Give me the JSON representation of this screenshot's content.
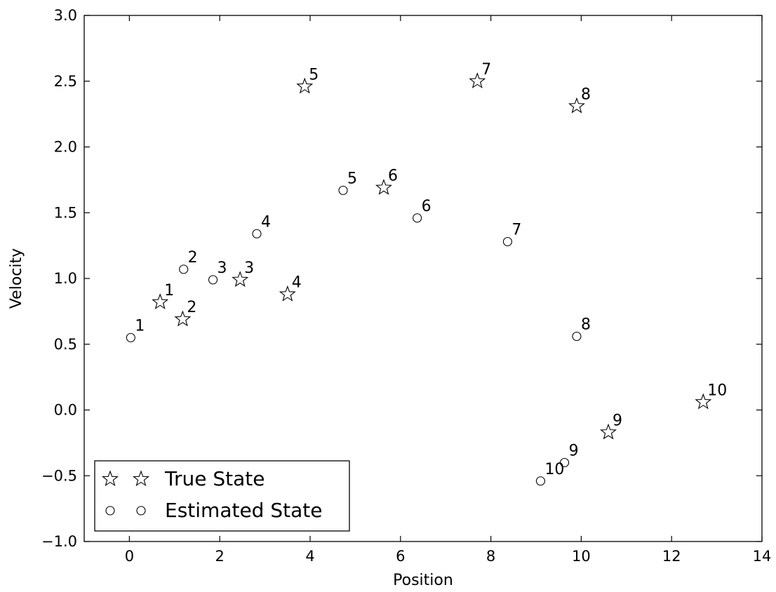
{
  "chart_data": {
    "type": "scatter",
    "xlabel": "Position",
    "ylabel": "Velocity",
    "xlim": [
      -1,
      14
    ],
    "ylim": [
      -1.0,
      3.0
    ],
    "x_ticks": [
      "0",
      "2",
      "4",
      "6",
      "8",
      "10",
      "12",
      "14"
    ],
    "y_ticks": [
      "−1.0",
      "−0.5",
      "0.0",
      "0.5",
      "1.0",
      "1.5",
      "2.0",
      "2.5",
      "3.0"
    ],
    "grid": false,
    "legend_position": "lower-left",
    "series": [
      {
        "name": "True State",
        "marker": "star",
        "color": "#ffffff",
        "edge_color": "#000000",
        "points": [
          {
            "x": 0.68,
            "y": 0.82,
            "label": "1"
          },
          {
            "x": 1.18,
            "y": 0.69,
            "label": "2"
          },
          {
            "x": 2.45,
            "y": 0.99,
            "label": "3"
          },
          {
            "x": 3.5,
            "y": 0.88,
            "label": "4"
          },
          {
            "x": 3.88,
            "y": 2.46,
            "label": "5"
          },
          {
            "x": 5.63,
            "y": 1.69,
            "label": "6"
          },
          {
            "x": 7.7,
            "y": 2.5,
            "label": "7"
          },
          {
            "x": 9.9,
            "y": 2.31,
            "label": "8"
          },
          {
            "x": 10.6,
            "y": -0.17,
            "label": "9"
          },
          {
            "x": 12.7,
            "y": 0.06,
            "label": "10"
          }
        ]
      },
      {
        "name": "Estimated State",
        "marker": "circle",
        "color": "#ffffff",
        "edge_color": "#000000",
        "points": [
          {
            "x": 0.03,
            "y": 0.55,
            "label": "1"
          },
          {
            "x": 1.2,
            "y": 1.07,
            "label": "2"
          },
          {
            "x": 1.85,
            "y": 0.99,
            "label": "3"
          },
          {
            "x": 2.82,
            "y": 1.34,
            "label": "4"
          },
          {
            "x": 4.73,
            "y": 1.67,
            "label": "5"
          },
          {
            "x": 6.37,
            "y": 1.46,
            "label": "6"
          },
          {
            "x": 8.37,
            "y": 1.28,
            "label": "7"
          },
          {
            "x": 9.9,
            "y": 0.56,
            "label": "8"
          },
          {
            "x": 9.63,
            "y": -0.4,
            "label": "9"
          },
          {
            "x": 9.1,
            "y": -0.54,
            "label": "10"
          }
        ]
      }
    ]
  }
}
